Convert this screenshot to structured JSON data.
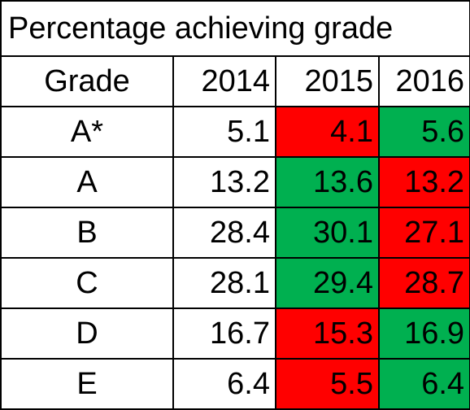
{
  "title": "Percentage achieving grade",
  "headers": {
    "grade": "Grade",
    "years": [
      "2014",
      "2015",
      "2016"
    ]
  },
  "colors": {
    "increase": "#00b050",
    "decrease": "#ff0000",
    "neutral": "#ffffff",
    "border": "#000000"
  },
  "rows": [
    {
      "grade": "A*",
      "values": [
        "5.1",
        "4.1",
        "5.6"
      ],
      "fills": [
        "neutral",
        "decrease",
        "increase"
      ]
    },
    {
      "grade": "A",
      "values": [
        "13.2",
        "13.6",
        "13.2"
      ],
      "fills": [
        "neutral",
        "increase",
        "decrease"
      ]
    },
    {
      "grade": "B",
      "values": [
        "28.4",
        "30.1",
        "27.1"
      ],
      "fills": [
        "neutral",
        "increase",
        "decrease"
      ]
    },
    {
      "grade": "C",
      "values": [
        "28.1",
        "29.4",
        "28.7"
      ],
      "fills": [
        "neutral",
        "increase",
        "decrease"
      ]
    },
    {
      "grade": "D",
      "values": [
        "16.7",
        "15.3",
        "16.9"
      ],
      "fills": [
        "neutral",
        "decrease",
        "increase"
      ]
    },
    {
      "grade": "E",
      "values": [
        "6.4",
        "5.5",
        "6.4"
      ],
      "fills": [
        "neutral",
        "decrease",
        "increase"
      ]
    }
  ]
}
